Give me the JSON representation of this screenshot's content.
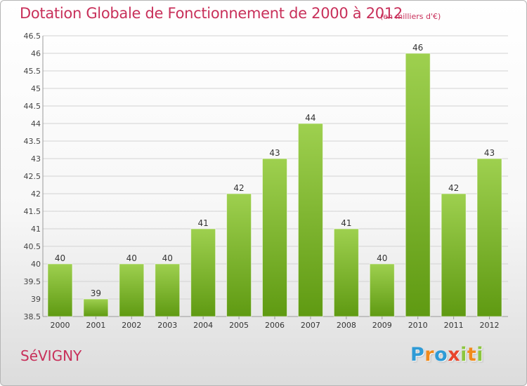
{
  "title": "Dotation Globale de Fonctionnement de 2000 à 2012",
  "subtitle": "(en milliers d'€)",
  "commune": "SéVIGNY",
  "logo": {
    "text": "Proxiti",
    "letters": [
      {
        "ch": "P",
        "color": "#2f9bd6"
      },
      {
        "ch": "r",
        "color": "#f08a1c"
      },
      {
        "ch": "o",
        "color": "#2f9bd6"
      },
      {
        "ch": "x",
        "color": "#e8452c"
      },
      {
        "ch": "i",
        "color": "#8cc63e"
      },
      {
        "ch": "t",
        "color": "#f08a1c"
      },
      {
        "ch": "i",
        "color": "#8cc63e"
      }
    ]
  },
  "colors": {
    "title": "#c8305a",
    "bar_light": "#9ed04f",
    "bar_dark": "#5f9a12",
    "grid": "#d2d2d2",
    "axis": "#9a9a9a"
  },
  "chart_data": {
    "type": "bar",
    "categories": [
      "2000",
      "2001",
      "2002",
      "2003",
      "2004",
      "2005",
      "2006",
      "2007",
      "2008",
      "2009",
      "2010",
      "2011",
      "2012"
    ],
    "values": [
      40,
      39,
      40,
      40,
      41,
      42,
      43,
      44,
      41,
      40,
      46,
      42,
      43
    ],
    "data_labels": [
      "40",
      "39",
      "40",
      "40",
      "41",
      "42",
      "43",
      "44",
      "41",
      "40",
      "46",
      "42",
      "43"
    ],
    "ylim": [
      38.5,
      46.5
    ],
    "yticks": [
      38.5,
      39,
      39.5,
      40,
      40.5,
      41,
      41.5,
      42,
      42.5,
      43,
      43.5,
      44,
      44.5,
      45,
      45.5,
      46,
      46.5
    ],
    "ytick_labels": [
      "38.5",
      "39",
      "39.5",
      "40",
      "40.5",
      "41",
      "41.5",
      "42",
      "42.5",
      "43",
      "43.5",
      "44",
      "44.5",
      "45",
      "45.5",
      "46",
      "46.5"
    ],
    "grid": true,
    "legend": "none"
  }
}
